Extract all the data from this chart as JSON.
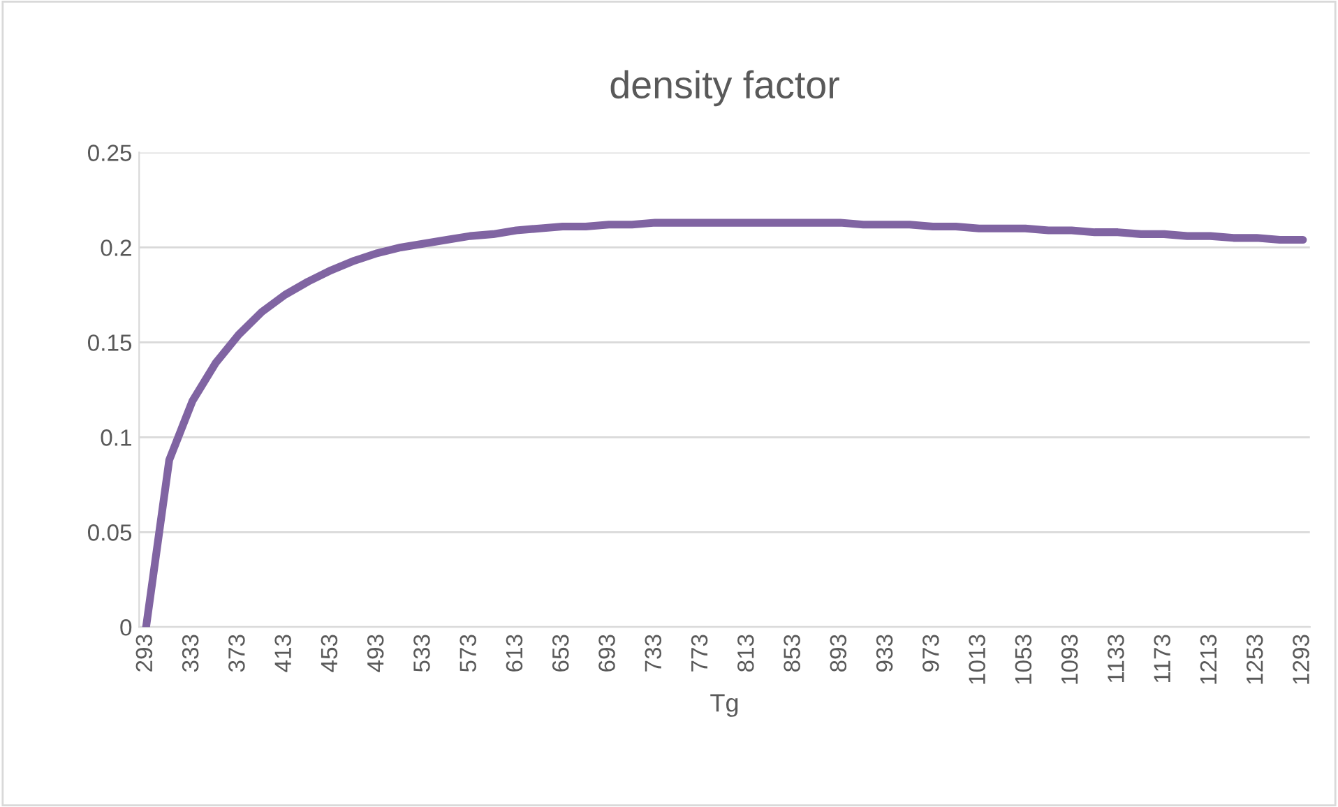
{
  "chart_data": {
    "type": "line",
    "title": "density factor",
    "xlabel": "Tg",
    "categories": [
      "293",
      null,
      "333",
      null,
      "373",
      null,
      "413",
      null,
      "453",
      null,
      "493",
      null,
      "533",
      null,
      "573",
      null,
      "613",
      null,
      "653",
      null,
      "693",
      null,
      "733",
      null,
      "773",
      null,
      "813",
      null,
      "853",
      null,
      "893",
      null,
      "933",
      null,
      "973",
      null,
      "1013",
      null,
      "1053",
      null,
      "1093",
      null,
      "1133",
      null,
      "1173",
      null,
      "1213",
      null,
      "1253",
      null,
      "1293"
    ],
    "series": [
      {
        "color": "#8064a2",
        "values": [
          0,
          0.088,
          0.119,
          0.139,
          0.154,
          0.166,
          0.175,
          0.182,
          0.188,
          0.193,
          0.197,
          0.2,
          0.202,
          0.204,
          0.206,
          0.207,
          0.209,
          0.21,
          0.211,
          0.211,
          0.212,
          0.212,
          0.213,
          0.213,
          0.213,
          0.213,
          0.213,
          0.213,
          0.213,
          0.213,
          0.213,
          0.212,
          0.212,
          0.212,
          0.211,
          0.211,
          0.21,
          0.21,
          0.21,
          0.209,
          0.209,
          0.208,
          0.208,
          0.207,
          0.207,
          0.206,
          0.206,
          0.205,
          0.205,
          0.204,
          0.204
        ]
      }
    ],
    "ylim": [
      0,
      0.25
    ],
    "yticks": [
      0,
      0.05,
      0.1,
      0.15,
      0.2,
      0.25
    ],
    "grid": "y",
    "legend": false,
    "marker": "none",
    "line_style": "solid"
  }
}
